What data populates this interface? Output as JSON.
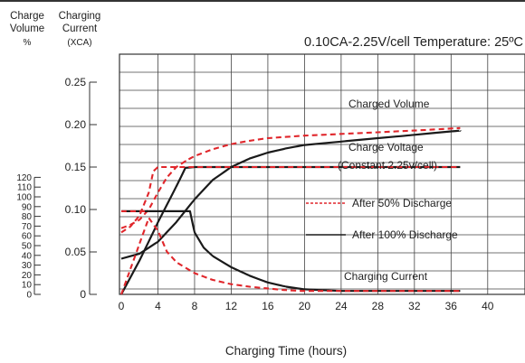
{
  "chart_data": {
    "type": "line",
    "title": "0.10CA-2.25V/cell  Temperature: 25ºC",
    "left_axis_header": [
      "Charge",
      "Volume",
      "%"
    ],
    "mid_axis_header": [
      "Charging",
      "Current",
      "(XCA)"
    ],
    "xlabel": "Charging Time (hours)",
    "x_ticks": [
      "0",
      "4",
      "8",
      "12",
      "16",
      "20",
      "24",
      "28",
      "32",
      "36",
      "40"
    ],
    "xlim": [
      0,
      40
    ],
    "grid": true,
    "volume_ticks": [
      "0",
      "10",
      "20",
      "30",
      "40",
      "50",
      "60",
      "70",
      "80",
      "90",
      "100",
      "110",
      "120"
    ],
    "current_ticks": [
      "0",
      "0.05",
      "0.10",
      "0.15",
      "0.20",
      "0.25"
    ],
    "ylim_current": [
      0,
      0.25
    ],
    "annotations": {
      "charged_volume": "Charged Volume",
      "charge_voltage": "Charge Voltage",
      "constant": "(Constant 2.25v/cell)",
      "charging_current": "Charging Current"
    },
    "legend": [
      {
        "label": "After 50% Discharge",
        "color": "#e0262b",
        "style": "dashed"
      },
      {
        "label": "After 100% Discharge",
        "color": "#1a1a1a",
        "style": "solid"
      }
    ],
    "series": [
      {
        "label": "After 100% Discharge",
        "color": "#1a1a1a",
        "style": "solid",
        "x": [
          0,
          2,
          4,
          6,
          8,
          10,
          12,
          14,
          16,
          18,
          20,
          24,
          28,
          32,
          36,
          37
        ],
        "y": [
          0.042,
          0.048,
          0.062,
          0.085,
          0.112,
          0.135,
          0.15,
          0.16,
          0.167,
          0.172,
          0.176,
          0.18,
          0.184,
          0.188,
          0.192,
          0.193
        ]
      },
      {
        "label": "After 50% Discharge",
        "color": "#e0262b",
        "style": "dashed",
        "x": [
          0,
          1,
          2,
          3,
          4,
          5,
          6,
          7,
          8,
          10,
          12,
          14,
          16,
          20,
          24,
          28,
          32,
          37
        ],
        "y": [
          0.078,
          0.082,
          0.088,
          0.1,
          0.12,
          0.138,
          0.15,
          0.157,
          0.163,
          0.171,
          0.177,
          0.181,
          0.184,
          0.187,
          0.189,
          0.191,
          0.193,
          0.196
        ]
      },
      {
        "label": "After 100% Discharge",
        "color": "#1a1a1a",
        "style": "solid",
        "x": [
          0,
          2,
          4,
          6,
          6.5,
          7,
          8,
          37
        ],
        "y": [
          0,
          0.04,
          0.085,
          0.127,
          0.138,
          0.149,
          0.15,
          0.15
        ]
      },
      {
        "label": "After 50% Discharge",
        "color": "#e0262b",
        "style": "dashed",
        "x": [
          0,
          1,
          2,
          3,
          3.5,
          4,
          8,
          37
        ],
        "y": [
          0.073,
          0.08,
          0.093,
          0.12,
          0.145,
          0.15,
          0.15,
          0.15
        ]
      },
      {
        "label": "After 100% Discharge",
        "color": "#1a1a1a",
        "style": "solid",
        "x": [
          0,
          7.5,
          7.5,
          8,
          9,
          10,
          12,
          14,
          16,
          18,
          20,
          24,
          28,
          32,
          37
        ],
        "y": [
          0.098,
          0.098,
          0.098,
          0.073,
          0.055,
          0.045,
          0.032,
          0.022,
          0.014,
          0.009,
          0.006,
          0.004,
          0.004,
          0.004,
          0.004
        ]
      },
      {
        "label": "After 50% Discharge",
        "color": "#e0262b",
        "style": "dashed",
        "x": [
          0,
          1,
          2,
          3,
          4,
          5,
          6,
          8,
          10,
          12,
          14,
          16,
          18,
          20,
          24,
          28,
          32,
          37
        ],
        "y": [
          0.0,
          0.03,
          0.06,
          0.09,
          0.075,
          0.05,
          0.038,
          0.025,
          0.017,
          0.012,
          0.009,
          0.007,
          0.005,
          0.004,
          0.004,
          0.004,
          0.004,
          0.004
        ]
      },
      {
        "label": "After 50% Discharge",
        "color": "#e0262b",
        "style": "dashed",
        "x": [
          0,
          3
        ],
        "y": [
          0.098,
          0.098
        ]
      }
    ]
  }
}
